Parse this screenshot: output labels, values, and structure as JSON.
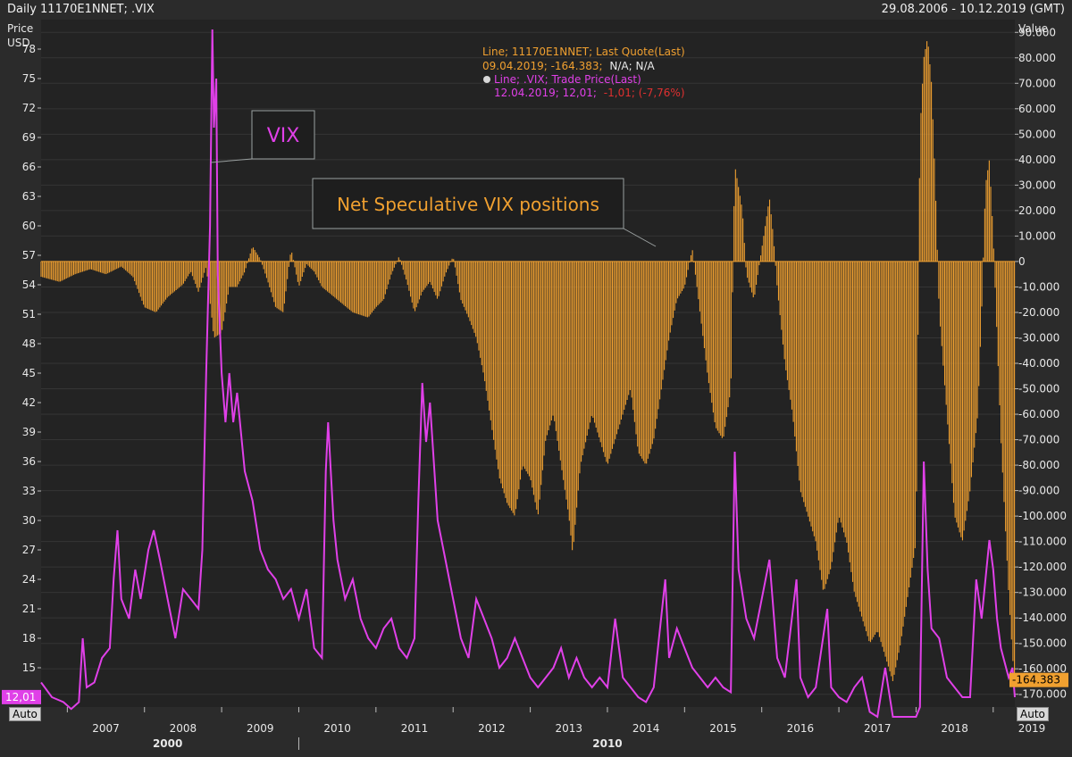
{
  "toolbar": {
    "title": "Daily 11170E1NNET; .VIX",
    "date_range": "29.08.2006 - 10.12.2019 (GMT)"
  },
  "auto_label": "Auto",
  "colors": {
    "background": "#2b2b2b",
    "vix": "#e040e8",
    "net": "#f0a030",
    "grid": "#3a3a3a",
    "axis_text": "#e8e8e8",
    "red": "#e03030"
  },
  "legend": {
    "line1": "Line; 11170E1NNET; Last Quote(Last)",
    "line2a": "09.04.2019; -164.383;",
    "line2b": "N/A; N/A",
    "line3": "Line; .VIX; Trade Price(Last)",
    "line4a": "12.04.2019; 12,01;",
    "line4b": "-1,01; (-7,76%)"
  },
  "annotations": {
    "vix_label": "VIX",
    "net_label": "Net Speculative VIX positions"
  },
  "chart_data": {
    "type": "line",
    "x_range": [
      "2006-08-29",
      "2019-04-12"
    ],
    "left_axis": {
      "label_line1": "Price",
      "label_line2": "USD",
      "ticks": [
        "78",
        "75",
        "72",
        "69",
        "66",
        "63",
        "60",
        "57",
        "54",
        "51",
        "48",
        "45",
        "42",
        "39",
        "36",
        "33",
        "30",
        "27",
        "24",
        "21",
        "18",
        "15"
      ],
      "range": [
        11,
        81
      ],
      "last_value_label": "12,01"
    },
    "right_axis": {
      "label": "Value",
      "ticks": [
        "90.000",
        "80.000",
        "70.000",
        "60.000",
        "50.000",
        "40.000",
        "30.000",
        "20.000",
        "10.000",
        "0",
        "-10.000",
        "-20.000",
        "-30.000",
        "-40.000",
        "-50.000",
        "-60.000",
        "-70.000",
        "-80.000",
        "-90.000",
        "-100.000",
        "-110.000",
        "-120.000",
        "-130.000",
        "-140.000",
        "-150.000",
        "-160.000",
        "-170.000"
      ],
      "range": [
        -175000,
        95000
      ],
      "last_value_label": "-164.383"
    },
    "x_ticks": [
      "2007",
      "2008",
      "2009",
      "2010",
      "2011",
      "2012",
      "2013",
      "2014",
      "2015",
      "2016",
      "2017",
      "2018",
      "2019"
    ],
    "x_secondary_ticks": [
      "2000",
      "2010"
    ],
    "series": [
      {
        "axis": "left",
        "style": "line",
        "points": [
          [
            2006.66,
            13.5
          ],
          [
            2006.8,
            12.0
          ],
          [
            2006.95,
            11.5
          ],
          [
            2007.05,
            10.8
          ],
          [
            2007.15,
            11.5
          ],
          [
            2007.2,
            18.0
          ],
          [
            2007.25,
            13.0
          ],
          [
            2007.35,
            13.5
          ],
          [
            2007.45,
            16.0
          ],
          [
            2007.55,
            17.0
          ],
          [
            2007.6,
            24.0
          ],
          [
            2007.65,
            29.0
          ],
          [
            2007.7,
            22.0
          ],
          [
            2007.8,
            20.0
          ],
          [
            2007.88,
            25.0
          ],
          [
            2007.95,
            22.0
          ],
          [
            2008.05,
            27.0
          ],
          [
            2008.12,
            29.0
          ],
          [
            2008.2,
            26.0
          ],
          [
            2008.3,
            22.0
          ],
          [
            2008.4,
            18.0
          ],
          [
            2008.5,
            23.0
          ],
          [
            2008.6,
            22.0
          ],
          [
            2008.7,
            21.0
          ],
          [
            2008.75,
            27.0
          ],
          [
            2008.8,
            45.0
          ],
          [
            2008.85,
            60.0
          ],
          [
            2008.88,
            80.0
          ],
          [
            2008.9,
            70.0
          ],
          [
            2008.93,
            75.0
          ],
          [
            2008.95,
            55.0
          ],
          [
            2009.0,
            45.0
          ],
          [
            2009.05,
            40.0
          ],
          [
            2009.1,
            45.0
          ],
          [
            2009.15,
            40.0
          ],
          [
            2009.2,
            43.0
          ],
          [
            2009.3,
            35.0
          ],
          [
            2009.4,
            32.0
          ],
          [
            2009.5,
            27.0
          ],
          [
            2009.6,
            25.0
          ],
          [
            2009.7,
            24.0
          ],
          [
            2009.8,
            22.0
          ],
          [
            2009.9,
            23.0
          ],
          [
            2010.0,
            20.0
          ],
          [
            2010.1,
            23.0
          ],
          [
            2010.2,
            17.0
          ],
          [
            2010.3,
            16.0
          ],
          [
            2010.35,
            35.0
          ],
          [
            2010.38,
            40.0
          ],
          [
            2010.45,
            30.0
          ],
          [
            2010.5,
            26.0
          ],
          [
            2010.6,
            22.0
          ],
          [
            2010.7,
            24.0
          ],
          [
            2010.8,
            20.0
          ],
          [
            2010.9,
            18.0
          ],
          [
            2011.0,
            17.0
          ],
          [
            2011.1,
            19.0
          ],
          [
            2011.2,
            20.0
          ],
          [
            2011.3,
            17.0
          ],
          [
            2011.4,
            16.0
          ],
          [
            2011.5,
            18.0
          ],
          [
            2011.55,
            32.0
          ],
          [
            2011.6,
            44.0
          ],
          [
            2011.65,
            38.0
          ],
          [
            2011.7,
            42.0
          ],
          [
            2011.8,
            30.0
          ],
          [
            2011.9,
            26.0
          ],
          [
            2012.0,
            22.0
          ],
          [
            2012.1,
            18.0
          ],
          [
            2012.2,
            16.0
          ],
          [
            2012.3,
            22.0
          ],
          [
            2012.4,
            20.0
          ],
          [
            2012.5,
            18.0
          ],
          [
            2012.6,
            15.0
          ],
          [
            2012.7,
            16.0
          ],
          [
            2012.8,
            18.0
          ],
          [
            2012.9,
            16.0
          ],
          [
            2013.0,
            14.0
          ],
          [
            2013.1,
            13.0
          ],
          [
            2013.2,
            14.0
          ],
          [
            2013.3,
            15.0
          ],
          [
            2013.4,
            17.0
          ],
          [
            2013.5,
            14.0
          ],
          [
            2013.6,
            16.0
          ],
          [
            2013.7,
            14.0
          ],
          [
            2013.8,
            13.0
          ],
          [
            2013.9,
            14.0
          ],
          [
            2014.0,
            13.0
          ],
          [
            2014.1,
            20.0
          ],
          [
            2014.2,
            14.0
          ],
          [
            2014.3,
            13.0
          ],
          [
            2014.4,
            12.0
          ],
          [
            2014.5,
            11.5
          ],
          [
            2014.6,
            13.0
          ],
          [
            2014.75,
            24.0
          ],
          [
            2014.8,
            16.0
          ],
          [
            2014.9,
            19.0
          ],
          [
            2015.0,
            17.0
          ],
          [
            2015.1,
            15.0
          ],
          [
            2015.2,
            14.0
          ],
          [
            2015.3,
            13.0
          ],
          [
            2015.4,
            14.0
          ],
          [
            2015.5,
            13.0
          ],
          [
            2015.6,
            12.5
          ],
          [
            2015.65,
            37.0
          ],
          [
            2015.7,
            25.0
          ],
          [
            2015.8,
            20.0
          ],
          [
            2015.9,
            18.0
          ],
          [
            2016.0,
            22.0
          ],
          [
            2016.1,
            26.0
          ],
          [
            2016.2,
            16.0
          ],
          [
            2016.3,
            14.0
          ],
          [
            2016.45,
            24.0
          ],
          [
            2016.5,
            14.0
          ],
          [
            2016.6,
            12.0
          ],
          [
            2016.7,
            13.0
          ],
          [
            2016.85,
            21.0
          ],
          [
            2016.9,
            13.0
          ],
          [
            2017.0,
            12.0
          ],
          [
            2017.1,
            11.5
          ],
          [
            2017.2,
            13.0
          ],
          [
            2017.3,
            14.0
          ],
          [
            2017.4,
            10.5
          ],
          [
            2017.5,
            10.0
          ],
          [
            2017.6,
            15.0
          ],
          [
            2017.7,
            10.0
          ],
          [
            2017.8,
            10.0
          ],
          [
            2017.9,
            10.0
          ],
          [
            2018.0,
            10.0
          ],
          [
            2018.05,
            11.0
          ],
          [
            2018.1,
            36.0
          ],
          [
            2018.15,
            25.0
          ],
          [
            2018.2,
            19.0
          ],
          [
            2018.3,
            18.0
          ],
          [
            2018.4,
            14.0
          ],
          [
            2018.5,
            13.0
          ],
          [
            2018.6,
            12.0
          ],
          [
            2018.7,
            12.0
          ],
          [
            2018.78,
            24.0
          ],
          [
            2018.85,
            20.0
          ],
          [
            2018.95,
            28.0
          ],
          [
            2019.0,
            25.0
          ],
          [
            2019.05,
            20.0
          ],
          [
            2019.1,
            17.0
          ],
          [
            2019.2,
            14.0
          ],
          [
            2019.25,
            15.0
          ],
          [
            2019.28,
            12.0
          ]
        ]
      },
      {
        "axis": "right",
        "style": "histogram",
        "points": [
          [
            2006.66,
            -6000
          ],
          [
            2006.9,
            -8000
          ],
          [
            2007.1,
            -5000
          ],
          [
            2007.3,
            -3000
          ],
          [
            2007.5,
            -5000
          ],
          [
            2007.7,
            -2000
          ],
          [
            2007.85,
            -6000
          ],
          [
            2008.0,
            -18000
          ],
          [
            2008.15,
            -20000
          ],
          [
            2008.3,
            -14000
          ],
          [
            2008.5,
            -9000
          ],
          [
            2008.6,
            -4000
          ],
          [
            2008.7,
            -12000
          ],
          [
            2008.8,
            -2000
          ],
          [
            2008.9,
            -30000
          ],
          [
            2009.0,
            -28000
          ],
          [
            2009.1,
            -10000
          ],
          [
            2009.2,
            -10000
          ],
          [
            2009.3,
            -4000
          ],
          [
            2009.4,
            6000
          ],
          [
            2009.5,
            1000
          ],
          [
            2009.6,
            -8000
          ],
          [
            2009.7,
            -18000
          ],
          [
            2009.8,
            -20000
          ],
          [
            2009.9,
            5000
          ],
          [
            2010.0,
            -10000
          ],
          [
            2010.1,
            -1000
          ],
          [
            2010.2,
            -4000
          ],
          [
            2010.3,
            -10000
          ],
          [
            2010.5,
            -15000
          ],
          [
            2010.7,
            -20000
          ],
          [
            2010.9,
            -22000
          ],
          [
            2011.0,
            -18000
          ],
          [
            2011.1,
            -15000
          ],
          [
            2011.2,
            -5000
          ],
          [
            2011.3,
            2000
          ],
          [
            2011.4,
            -8000
          ],
          [
            2011.5,
            -20000
          ],
          [
            2011.6,
            -12000
          ],
          [
            2011.7,
            -8000
          ],
          [
            2011.8,
            -15000
          ],
          [
            2011.9,
            -5000
          ],
          [
            2012.0,
            2000
          ],
          [
            2012.1,
            -15000
          ],
          [
            2012.2,
            -22000
          ],
          [
            2012.3,
            -30000
          ],
          [
            2012.4,
            -45000
          ],
          [
            2012.5,
            -65000
          ],
          [
            2012.6,
            -85000
          ],
          [
            2012.7,
            -95000
          ],
          [
            2012.8,
            -100000
          ],
          [
            2012.9,
            -80000
          ],
          [
            2013.0,
            -85000
          ],
          [
            2013.1,
            -100000
          ],
          [
            2013.2,
            -70000
          ],
          [
            2013.3,
            -60000
          ],
          [
            2013.4,
            -80000
          ],
          [
            2013.5,
            -100000
          ],
          [
            2013.55,
            -115000
          ],
          [
            2013.65,
            -80000
          ],
          [
            2013.8,
            -60000
          ],
          [
            2013.9,
            -70000
          ],
          [
            2014.0,
            -80000
          ],
          [
            2014.1,
            -70000
          ],
          [
            2014.2,
            -60000
          ],
          [
            2014.3,
            -50000
          ],
          [
            2014.4,
            -75000
          ],
          [
            2014.5,
            -80000
          ],
          [
            2014.6,
            -70000
          ],
          [
            2014.7,
            -50000
          ],
          [
            2014.8,
            -30000
          ],
          [
            2014.9,
            -15000
          ],
          [
            2015.0,
            -10000
          ],
          [
            2015.1,
            5000
          ],
          [
            2015.2,
            -20000
          ],
          [
            2015.3,
            -45000
          ],
          [
            2015.4,
            -65000
          ],
          [
            2015.5,
            -70000
          ],
          [
            2015.6,
            -50000
          ],
          [
            2015.65,
            38000
          ],
          [
            2015.75,
            20000
          ],
          [
            2015.8,
            -5000
          ],
          [
            2015.9,
            -15000
          ],
          [
            2016.0,
            5000
          ],
          [
            2016.1,
            25000
          ],
          [
            2016.15,
            10000
          ],
          [
            2016.2,
            -10000
          ],
          [
            2016.3,
            -40000
          ],
          [
            2016.4,
            -60000
          ],
          [
            2016.5,
            -90000
          ],
          [
            2016.6,
            -100000
          ],
          [
            2016.7,
            -110000
          ],
          [
            2016.8,
            -130000
          ],
          [
            2016.9,
            -120000
          ],
          [
            2017.0,
            -100000
          ],
          [
            2017.1,
            -110000
          ],
          [
            2017.2,
            -130000
          ],
          [
            2017.3,
            -140000
          ],
          [
            2017.4,
            -150000
          ],
          [
            2017.5,
            -145000
          ],
          [
            2017.6,
            -155000
          ],
          [
            2017.7,
            -165000
          ],
          [
            2017.8,
            -150000
          ],
          [
            2017.9,
            -130000
          ],
          [
            2018.0,
            -110000
          ],
          [
            2018.05,
            50000
          ],
          [
            2018.1,
            80000
          ],
          [
            2018.15,
            88000
          ],
          [
            2018.2,
            70000
          ],
          [
            2018.25,
            30000
          ],
          [
            2018.3,
            -20000
          ],
          [
            2018.4,
            -60000
          ],
          [
            2018.5,
            -100000
          ],
          [
            2018.6,
            -110000
          ],
          [
            2018.7,
            -90000
          ],
          [
            2018.8,
            -60000
          ],
          [
            2018.85,
            -20000
          ],
          [
            2018.9,
            30000
          ],
          [
            2018.95,
            40000
          ],
          [
            2019.0,
            10000
          ],
          [
            2019.05,
            -30000
          ],
          [
            2019.1,
            -70000
          ],
          [
            2019.15,
            -100000
          ],
          [
            2019.2,
            -130000
          ],
          [
            2019.25,
            -155000
          ],
          [
            2019.28,
            -164383
          ]
        ]
      }
    ]
  }
}
